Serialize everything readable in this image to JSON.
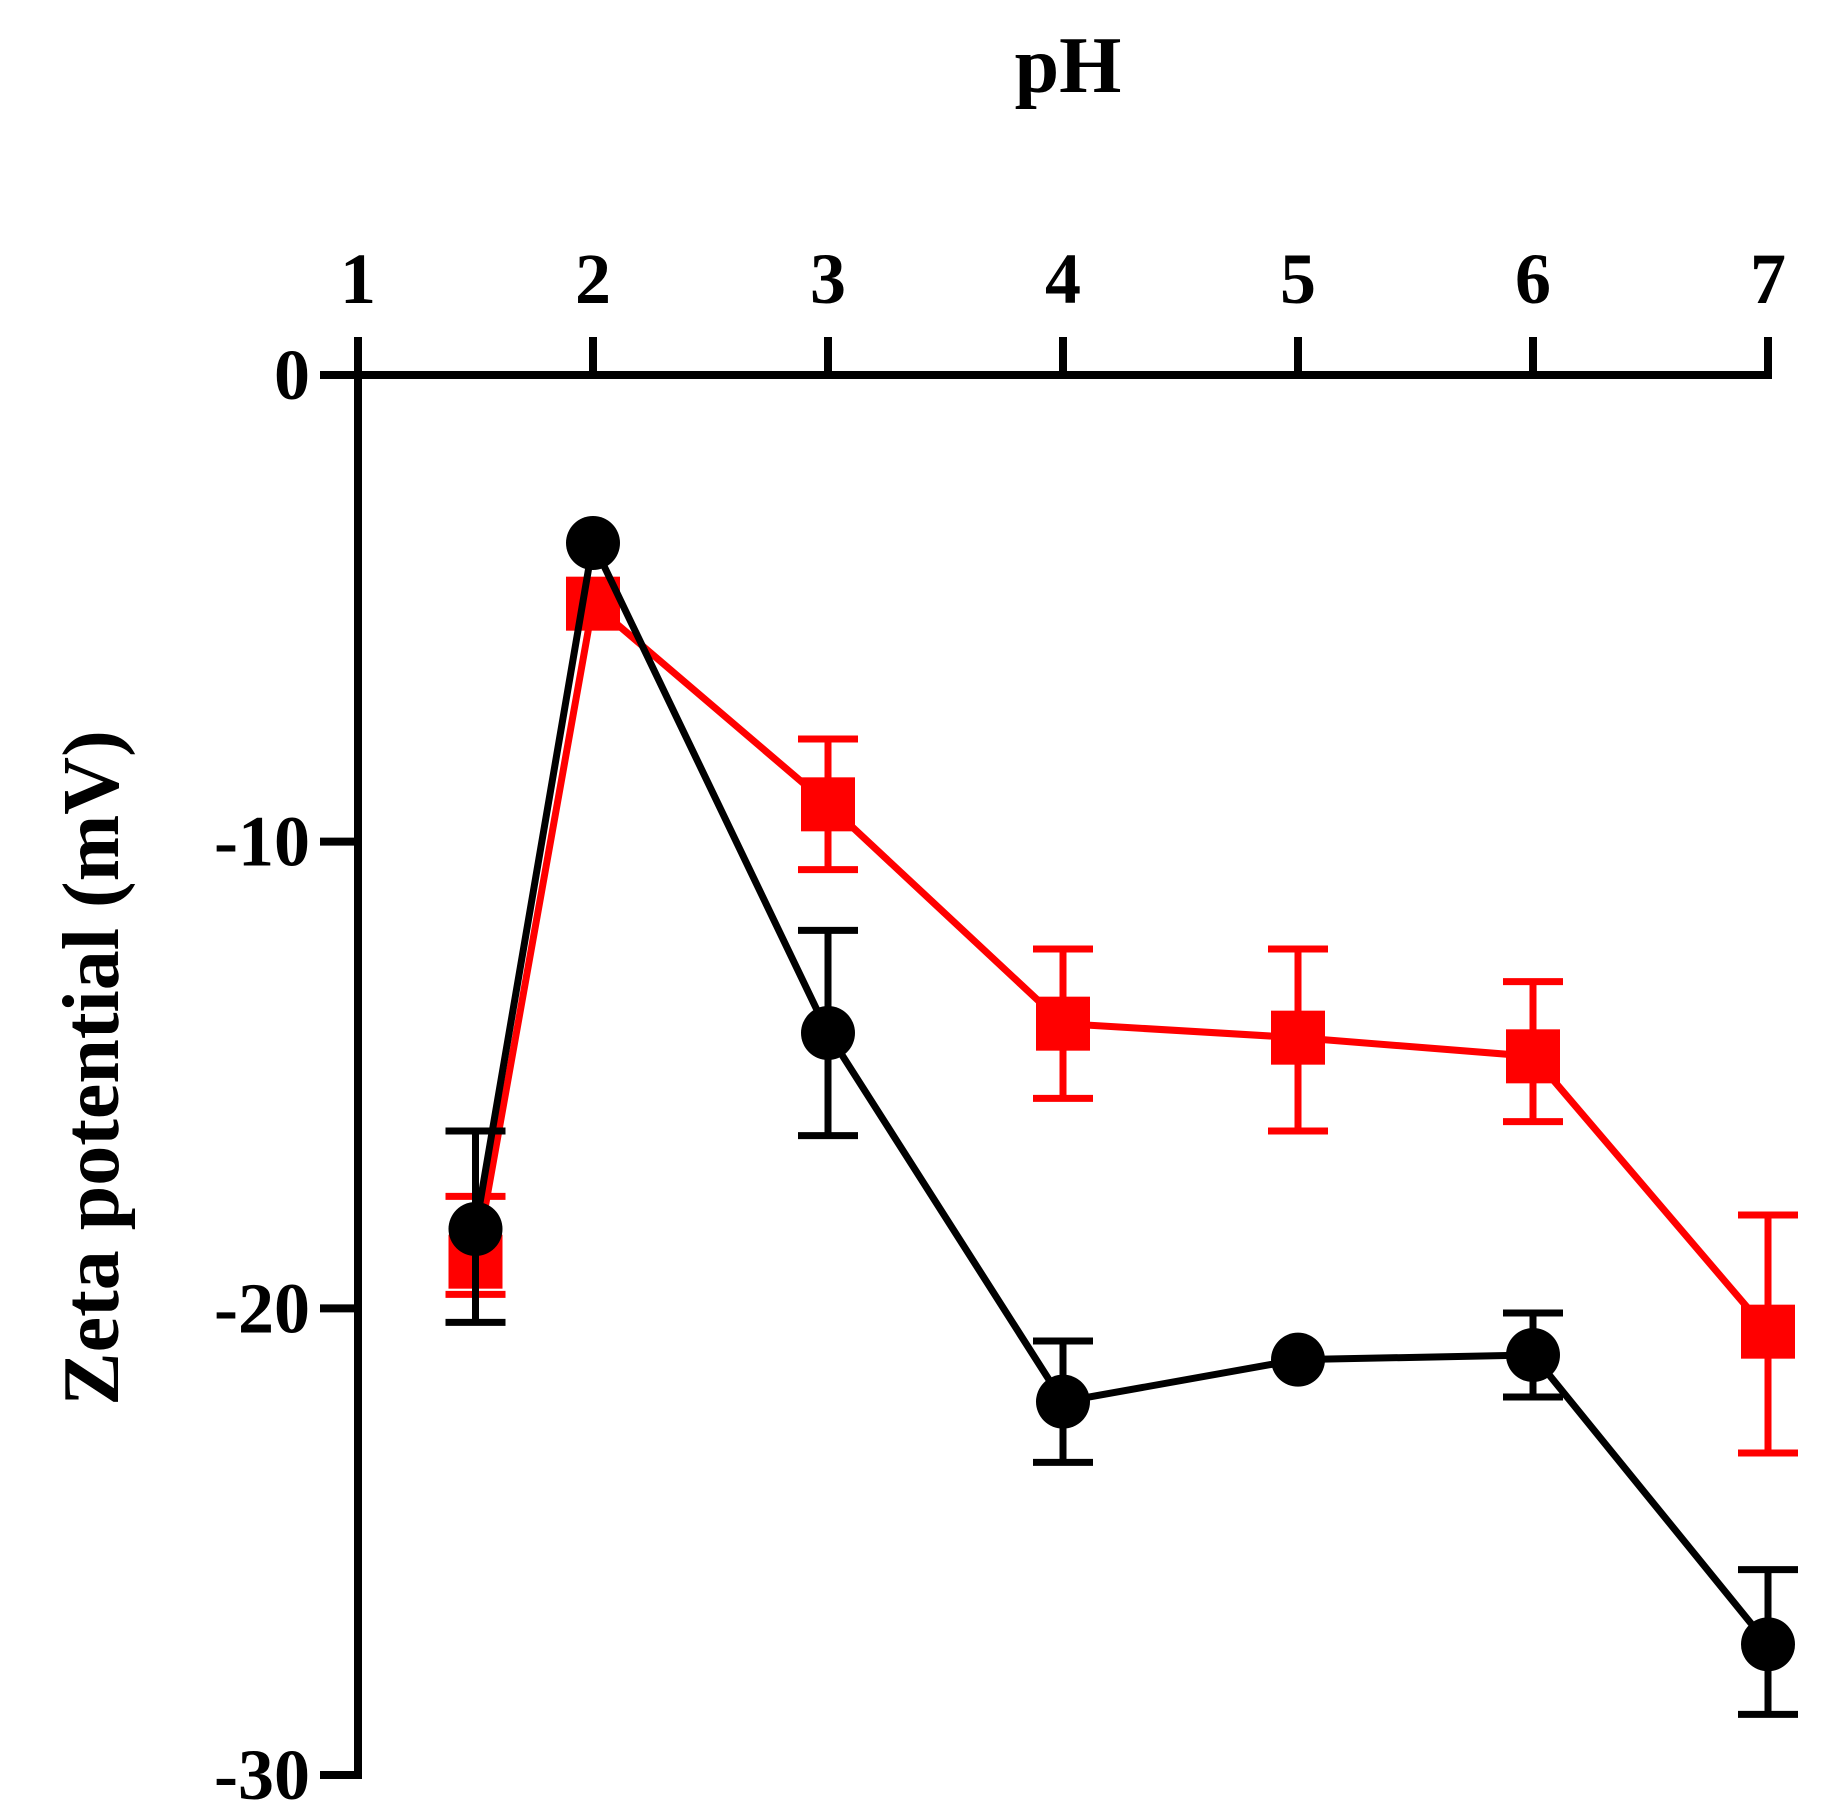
{
  "chart_data": {
    "type": "line",
    "title": "",
    "xlabel": "pH",
    "ylabel": "Zeta potential (mV)",
    "xlim": [
      1,
      7
    ],
    "ylim": [
      -30,
      0
    ],
    "x_axis_position": "top",
    "x_ticks": [
      1,
      2,
      3,
      4,
      5,
      6,
      7
    ],
    "x_tick_labels": [
      "1",
      "2",
      "3",
      "4",
      "5",
      "6",
      "7"
    ],
    "y_ticks": [
      0,
      -10,
      -20,
      -30
    ],
    "y_tick_labels": [
      "0",
      "-10",
      "-20",
      "-30"
    ],
    "grid": false,
    "legend": "none",
    "series": [
      {
        "name": "red squares",
        "color": "#ff0000",
        "marker": "square",
        "x": [
          1.5,
          2.0,
          3.0,
          4.0,
          5.0,
          6.0,
          7.0
        ],
        "y": [
          -19.0,
          -4.9,
          -9.2,
          -13.9,
          -14.2,
          -14.6,
          -20.5
        ],
        "err_low": [
          -19.7,
          -4.9,
          -10.6,
          -15.5,
          -16.2,
          -16.0,
          -23.1
        ],
        "err_high": [
          -17.6,
          -4.9,
          -7.8,
          -12.3,
          -12.3,
          -13.0,
          -18.0
        ]
      },
      {
        "name": "black circles",
        "color": "#000000",
        "marker": "circle",
        "x": [
          1.5,
          2.0,
          3.0,
          4.0,
          5.0,
          6.0,
          7.0
        ],
        "y": [
          -18.3,
          -3.6,
          -14.1,
          -22.0,
          -21.1,
          -21.0,
          -27.2
        ],
        "err_low": [
          -20.3,
          -3.6,
          -16.3,
          -23.3,
          -21.1,
          -21.9,
          -28.7
        ],
        "err_high": [
          -16.2,
          -3.6,
          -11.9,
          -20.7,
          -21.1,
          -20.1,
          -25.6
        ]
      }
    ]
  }
}
